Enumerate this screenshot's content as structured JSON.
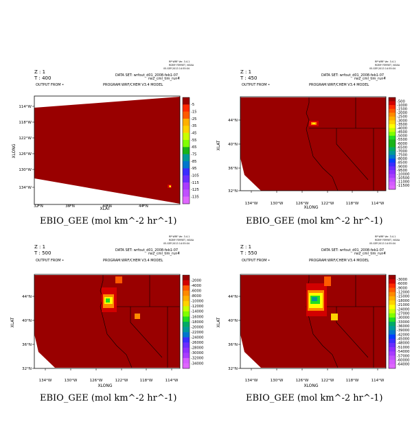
{
  "chart_data": [
    {
      "type": "heatmap",
      "header": {
        "z": "Z : 1",
        "t": "T : 400",
        "output_from": "OUTPUT FROM  •",
        "program": "PROGRAM:WRF/CHEM V3.4 MODEL",
        "dataset": "DATA SET:  wrfout_d01_2008-feb1-07_",
        "dataset2": "rw2_cml_tim_run4",
        "meta1": "RP·WRF Ver. 3.4.1",
        "meta2": "RDMY FERRET, NOAA",
        "meta3": "05-SEP-2013 14:55:04"
      },
      "title": "EBIO_GEE (mol km^-2 hr^-1)",
      "xlabel": "XLAT",
      "ylabel": "XLONG",
      "x_ticks": [
        "32°N",
        "36°N",
        "40°N",
        "44°N"
      ],
      "y_ticks": [
        "114°W",
        "118°W",
        "122°W",
        "126°W",
        "130°W",
        "134°W"
      ],
      "colorbar_levels": [
        "-5",
        "-15",
        "-25",
        "-35",
        "-45",
        "-55",
        "-65",
        "-75",
        "-85",
        "-95",
        "-105",
        "-115",
        "-125",
        "-135"
      ],
      "dominant_value_band": "-5 .. 0"
    },
    {
      "type": "heatmap",
      "header": {
        "z": "Z : 1",
        "t": "T : 450",
        "output_from": "OUTPUT FROM  •",
        "program": "PROGRAM:WRF/CHEM V3.4 MODEL",
        "dataset": "DATA SET:  wrfout_d01_2008-feb1-07_",
        "dataset2": "rw2_cml_tim_run4",
        "meta1": "RP·WRF Ver. 3.4.1",
        "meta2": "RDMY FERRET, NOAA",
        "meta3": "05-SEP-2013 14:55:04"
      },
      "title": "EBIO_GEE (mol km^-2 hr^-1)",
      "xlabel": "XLONG",
      "ylabel": "XLAT",
      "x_ticks": [
        "134°W",
        "130°W",
        "126°W",
        "122°W",
        "118°W",
        "114°W"
      ],
      "y_ticks": [
        "44°N",
        "40°N",
        "36°N",
        "32°N"
      ],
      "colorbar_levels": [
        "-500",
        "-1000",
        "-1500",
        "-2000",
        "-2500",
        "-3000",
        "-3500",
        "-4000",
        "-4500",
        "-5000",
        "-5500",
        "-6000",
        "-6500",
        "-7000",
        "-7500",
        "-8000",
        "-8500",
        "-9000",
        "-9500",
        "-10000",
        "-10500",
        "-11000",
        "-11500"
      ],
      "dominant_value_band": "-500 .. 0"
    },
    {
      "type": "heatmap",
      "header": {
        "z": "Z : 1",
        "t": "T : 500",
        "output_from": "OUTPUT FROM  •",
        "program": "PROGRAM:WRF/CHEM V3.4 MODEL",
        "dataset": "DATA SET:  wrfout_d01_2008-feb1-07_",
        "dataset2": "rw2_cml_tim_run4",
        "meta1": "RP·WRF Ver. 3.4.1",
        "meta2": "RDMY FERRET, NOAA",
        "meta3": "05-SEP-2013 14:55:04"
      },
      "title": "EBIO_GEE (mol km^-2 hr^-1)",
      "xlabel": "XLONG",
      "ylabel": "XLAT",
      "x_ticks": [
        "134°W",
        "130°W",
        "126°W",
        "122°W",
        "118°W",
        "114°W"
      ],
      "y_ticks": [
        "44°N",
        "40°N",
        "36°N",
        "32°N"
      ],
      "colorbar_levels": [
        "-2000",
        "-4000",
        "-6000",
        "-8000",
        "-10000",
        "-12000",
        "-14000",
        "-16000",
        "-18000",
        "-20000",
        "-22000",
        "-24000",
        "-26000",
        "-28000",
        "-30000",
        "-32000",
        "-34000"
      ],
      "dominant_value_band": "-2000 .. 0"
    },
    {
      "type": "heatmap",
      "header": {
        "z": "Z : 1",
        "t": "T : 550",
        "output_from": "OUTPUT FROM  •",
        "program": "PROGRAM:WRF/CHEM V3.4 MODEL",
        "dataset": "DATA SET:  wrfout_d01_2008-feb1-07_",
        "dataset2": "rw2_cml_tim_run4",
        "meta1": "RP·WRF Ver. 3.4.1",
        "meta2": "RDMY FERRET, NOAA",
        "meta3": "05-SEP-2013 14:55:04"
      },
      "title": "EBIO_GEE (mol km^-2 hr^-1)",
      "xlabel": "XLONG",
      "ylabel": "XLAT",
      "x_ticks": [
        "134°W",
        "130°W",
        "126°W",
        "122°W",
        "118°W",
        "114°W"
      ],
      "y_ticks": [
        "44°N",
        "40°N",
        "36°N",
        "32°N"
      ],
      "colorbar_levels": [
        "-3000",
        "-6000",
        "-9000",
        "-12000",
        "-15000",
        "-18000",
        "-21000",
        "-24000",
        "-27000",
        "-30000",
        "-33000",
        "-36000",
        "-39000",
        "-42000",
        "-45000",
        "-48000",
        "-51000",
        "-54000",
        "-57000",
        "-60000",
        "-64000"
      ],
      "dominant_value_band": "-3000 .. 0"
    }
  ],
  "colors": {
    "background_field": "#990000",
    "palette": [
      "#990000",
      "#d20000",
      "#ff2a00",
      "#ff5a00",
      "#ff8a00",
      "#ffb000",
      "#ffd200",
      "#ffff00",
      "#c8ff00",
      "#80ff00",
      "#22dd22",
      "#18b418",
      "#00aa66",
      "#009999",
      "#0077cc",
      "#0040ff",
      "#3a2dff",
      "#6a2dff",
      "#8f2fff",
      "#a83cff",
      "#c050ff",
      "#d45cff",
      "#e066ff"
    ]
  }
}
